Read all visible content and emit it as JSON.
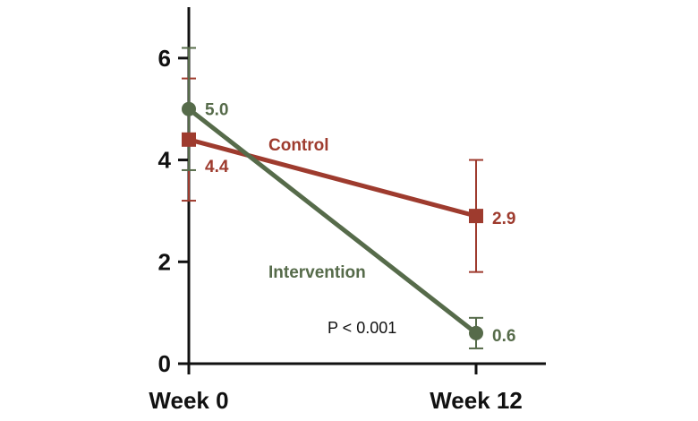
{
  "chart_data": {
    "type": "line",
    "categories": [
      "Week 0",
      "Week 12"
    ],
    "ylim": [
      0,
      7
    ],
    "yticks": [
      0,
      2,
      4,
      6
    ],
    "grid": false,
    "legend": "inline labels",
    "series": [
      {
        "name": "Control",
        "values": [
          4.4,
          2.9
        ],
        "value_labels": [
          "4.4",
          "2.9"
        ],
        "error": [
          1.2,
          1.1
        ],
        "marker": "square",
        "color": "#9e3b2e"
      },
      {
        "name": "Intervention",
        "values": [
          5.0,
          0.6
        ],
        "value_labels": [
          "5.0",
          "0.6"
        ],
        "error": [
          1.2,
          0.3
        ],
        "marker": "circle",
        "color": "#566b4a"
      }
    ],
    "annotation": "P < 0.001"
  },
  "colors": {
    "axis": "#111111"
  }
}
